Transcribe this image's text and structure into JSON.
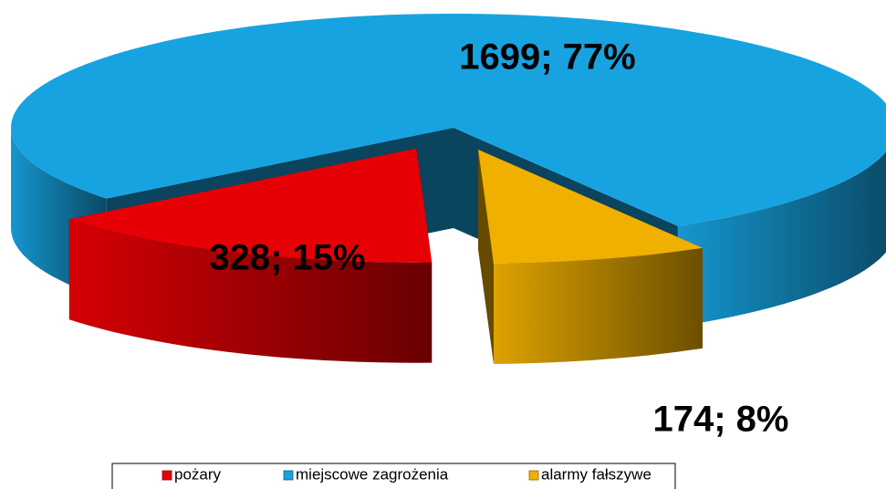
{
  "chart_data": {
    "type": "pie3d",
    "categories": [
      "pożary",
      "miejscowe zagrożenia",
      "alarmy fałszywe"
    ],
    "values": [
      328,
      1699,
      174
    ],
    "value_labels": [
      "328; 15%",
      "1699; 77%",
      "174; 8%"
    ],
    "colors": [
      "#e60005",
      "#17a3e0",
      "#f0b000"
    ],
    "legend": "bottom"
  }
}
